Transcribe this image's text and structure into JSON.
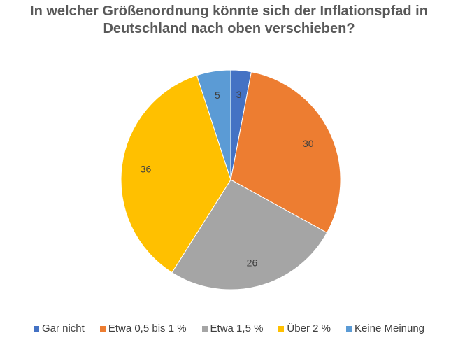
{
  "chart_data": {
    "type": "pie",
    "title_lines": [
      "In welcher Größenordnung könnte sich der Inflationspfad in",
      "Deutschland nach oben verschieben?"
    ],
    "categories": [
      "Gar nicht",
      "Etwa 0,5 bis 1 %",
      "Etwa 1,5 %",
      "Über 2 %",
      "Keine Meinung"
    ],
    "values": [
      3,
      30,
      26,
      36,
      5
    ],
    "data_labels": [
      "3",
      "30",
      "26",
      "36",
      "5"
    ],
    "colors": [
      "#4472C4",
      "#ED7D31",
      "#A5A5A5",
      "#FFC000",
      "#5B9BD5"
    ],
    "legend_position": "bottom",
    "start_angle": "12 o'clock",
    "direction": "clockwise"
  }
}
